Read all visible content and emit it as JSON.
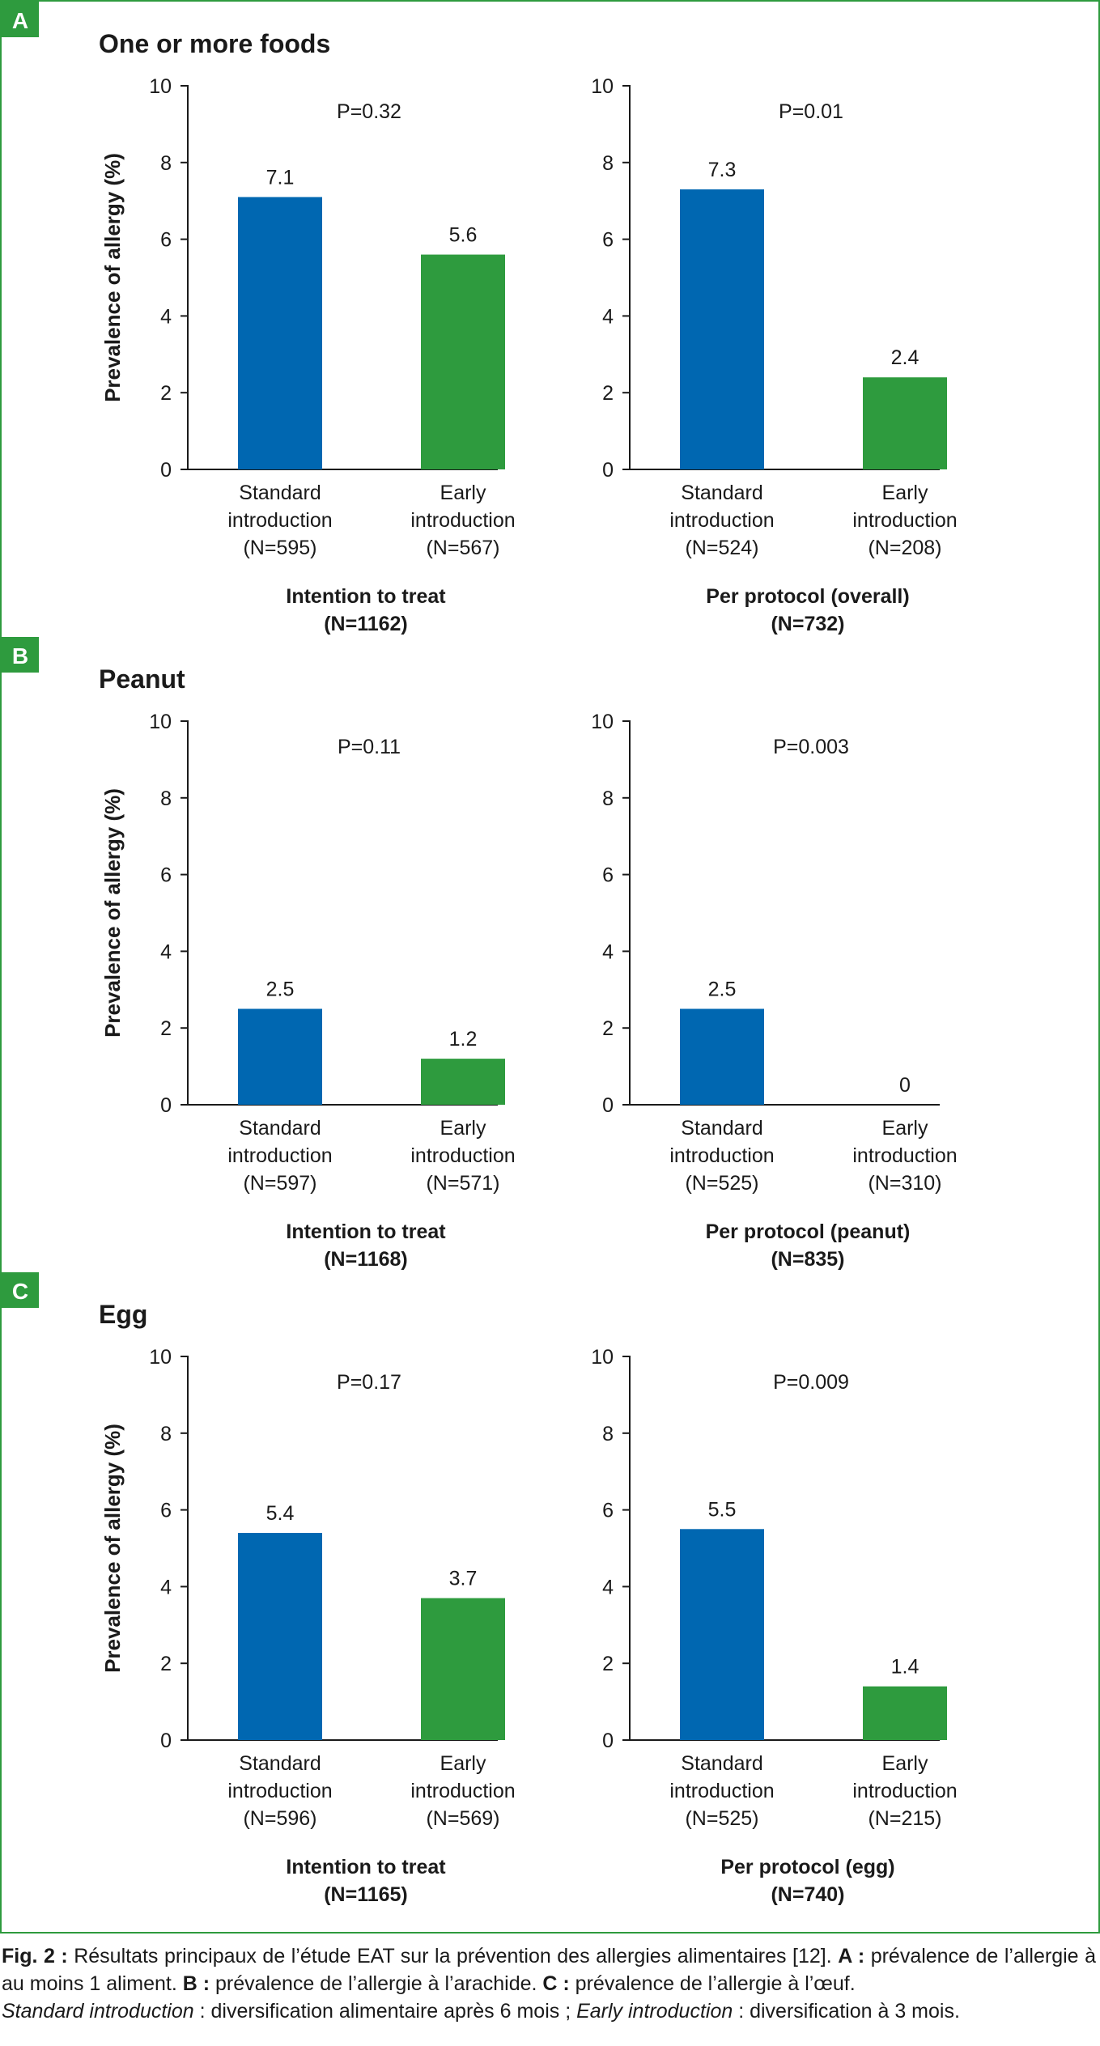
{
  "colors": {
    "standard_bar": "#0067b1",
    "early_bar": "#2e9b3e",
    "panel_badge": "#2e9b3e",
    "frame": "#2e9b3e",
    "axis": "#1a1a1a"
  },
  "y_axis_label": "Prevalence of allergy (%)",
  "chart_data": [
    {
      "panel": "A",
      "type": "bar",
      "title": "One or more foods",
      "ylabel": "Prevalence of allergy (%)",
      "ylim": [
        0,
        10
      ],
      "yticks": [
        0,
        2,
        4,
        6,
        8,
        10
      ],
      "charts": [
        {
          "p_value": "P=0.32",
          "categories": [
            [
              "Standard",
              "introduction",
              "(N=595)"
            ],
            [
              "Early",
              "introduction",
              "(N=567)"
            ]
          ],
          "values": [
            7.1,
            5.6
          ],
          "value_labels": [
            "7.1",
            "5.6"
          ],
          "group_label": [
            "Intention to treat",
            "(N=1162)"
          ]
        },
        {
          "p_value": "P=0.01",
          "categories": [
            [
              "Standard",
              "introduction",
              "(N=524)"
            ],
            [
              "Early",
              "introduction",
              "(N=208)"
            ]
          ],
          "values": [
            7.3,
            2.4
          ],
          "value_labels": [
            "7.3",
            "2.4"
          ],
          "group_label": [
            "Per protocol (overall)",
            "(N=732)"
          ]
        }
      ]
    },
    {
      "panel": "B",
      "type": "bar",
      "title": "Peanut",
      "ylabel": "Prevalence of allergy (%)",
      "ylim": [
        0,
        10
      ],
      "yticks": [
        0,
        2,
        4,
        6,
        8,
        10
      ],
      "charts": [
        {
          "p_value": "P=0.11",
          "categories": [
            [
              "Standard",
              "introduction",
              "(N=597)"
            ],
            [
              "Early",
              "introduction",
              "(N=571)"
            ]
          ],
          "values": [
            2.5,
            1.2
          ],
          "value_labels": [
            "2.5",
            "1.2"
          ],
          "group_label": [
            "Intention to treat",
            "(N=1168)"
          ]
        },
        {
          "p_value": "P=0.003",
          "categories": [
            [
              "Standard",
              "introduction",
              "(N=525)"
            ],
            [
              "Early",
              "introduction",
              "(N=310)"
            ]
          ],
          "values": [
            2.5,
            0
          ],
          "value_labels": [
            "2.5",
            "0"
          ],
          "group_label": [
            "Per protocol (peanut)",
            "(N=835)"
          ]
        }
      ]
    },
    {
      "panel": "C",
      "type": "bar",
      "title": "Egg",
      "ylabel": "Prevalence of allergy (%)",
      "ylim": [
        0,
        10
      ],
      "yticks": [
        0,
        2,
        4,
        6,
        8,
        10
      ],
      "charts": [
        {
          "p_value": "P=0.17",
          "categories": [
            [
              "Standard",
              "introduction",
              "(N=596)"
            ],
            [
              "Early",
              "introduction",
              "(N=569)"
            ]
          ],
          "values": [
            5.4,
            3.7
          ],
          "value_labels": [
            "5.4",
            "3.7"
          ],
          "group_label": [
            "Intention to treat",
            "(N=1165)"
          ]
        },
        {
          "p_value": "P=0.009",
          "categories": [
            [
              "Standard",
              "introduction",
              "(N=525)"
            ],
            [
              "Early",
              "introduction",
              "(N=215)"
            ]
          ],
          "values": [
            5.5,
            1.4
          ],
          "value_labels": [
            "5.5",
            "1.4"
          ],
          "group_label": [
            "Per protocol (egg)",
            "(N=740)"
          ]
        }
      ]
    }
  ],
  "caption": {
    "fig_label": "Fig. 2 :",
    "text_1": " Résultats principaux de l’étude EAT sur la prévention des allergies alimentaires [12]. ",
    "a_label": "A :",
    "a_text": " prévalence de l’allergie à au moins 1 aliment. ",
    "b_label": "B :",
    "b_text": " prévalence de l’allergie à l’arachide. ",
    "c_label": "C :",
    "c_text": " prévalence de l’allergie à l’œuf.",
    "standard_term": "Standard introduction",
    "standard_text": " : diversification alimentaire après 6 mois ; ",
    "early_term": "Early introduction",
    "early_text": " : diversification à 3 mois."
  }
}
